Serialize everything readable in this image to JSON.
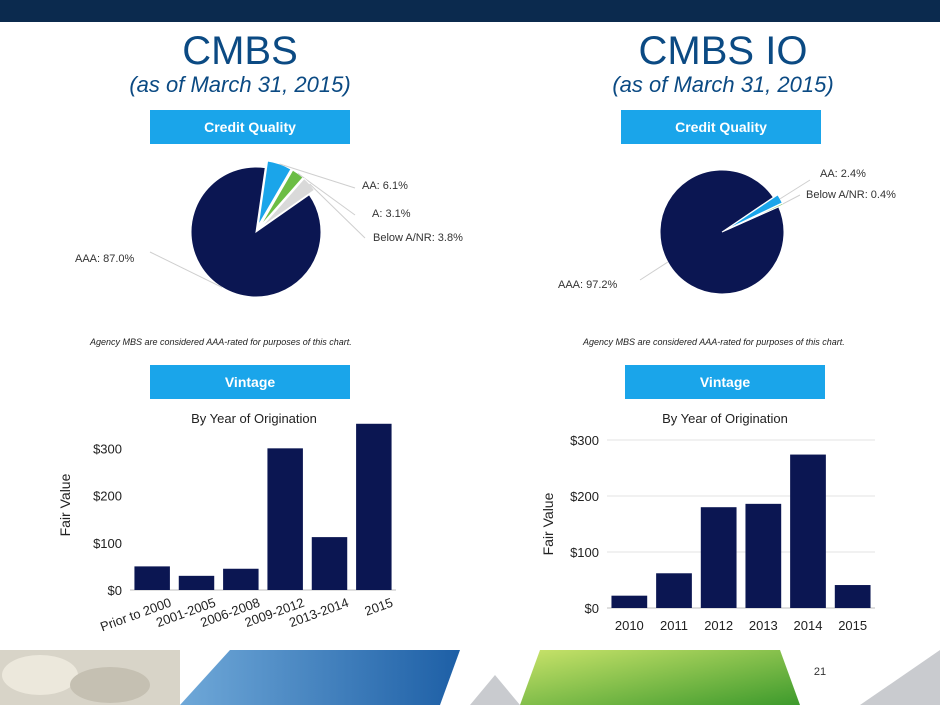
{
  "left": {
    "title": "CMBS",
    "subtitle": "(as of March 31, 2015)",
    "credit_header": "Credit Quality",
    "footnote": "Agency MBS are considered AAA-rated for purposes of this chart.",
    "vintage_header": "Vintage"
  },
  "right": {
    "title": "CMBS IO",
    "subtitle": "(as of March 31, 2015)",
    "credit_header": "Credit Quality",
    "footnote": "Agency MBS are considered AAA-rated for purposes of this chart.",
    "vintage_header": "Vintage"
  },
  "page_number": "21",
  "chart_data": [
    {
      "type": "pie",
      "labels": [
        "AAA: 87.0%",
        "AA: 6.1%",
        "A: 3.1%",
        "Below A/NR: 3.8%"
      ],
      "values": [
        87.0,
        6.1,
        3.1,
        3.8
      ],
      "colors": [
        "#0b1652",
        "#1aa5ea",
        "#6cbd45",
        "#d9d9d9"
      ]
    },
    {
      "type": "pie",
      "labels": [
        "AAA: 97.2%",
        "AA: 2.4%",
        "Below A/NR: 0.4%"
      ],
      "values": [
        97.2,
        2.4,
        0.4
      ],
      "colors": [
        "#0b1652",
        "#1aa5ea",
        "#6cbd45"
      ]
    },
    {
      "type": "bar",
      "title": "By Year of Origination",
      "ylabel": "Fair Value",
      "categories": [
        "Prior to 2000",
        "2001-2005",
        "2006-2008",
        "2009-2012",
        "2013-2014",
        "2015"
      ],
      "values": [
        50,
        30,
        45,
        300,
        112,
        352
      ],
      "ylim": [
        0,
        360
      ],
      "yticks": [
        0,
        100,
        200,
        300
      ],
      "ytick_labels": [
        "$0",
        "$100",
        "$200",
        "$300"
      ],
      "color": "#0b1652",
      "grid": false
    },
    {
      "type": "bar",
      "title": "By Year of Origination",
      "ylabel": "Fair Value",
      "categories": [
        "2010",
        "2011",
        "2012",
        "2013",
        "2014",
        "2015"
      ],
      "values": [
        22,
        62,
        180,
        186,
        274,
        41
      ],
      "ylim": [
        0,
        300
      ],
      "yticks": [
        0,
        100,
        200,
        300
      ],
      "ytick_labels": [
        "$0",
        "$100",
        "$200",
        "$300"
      ],
      "color": "#0b1652",
      "grid": true
    }
  ]
}
